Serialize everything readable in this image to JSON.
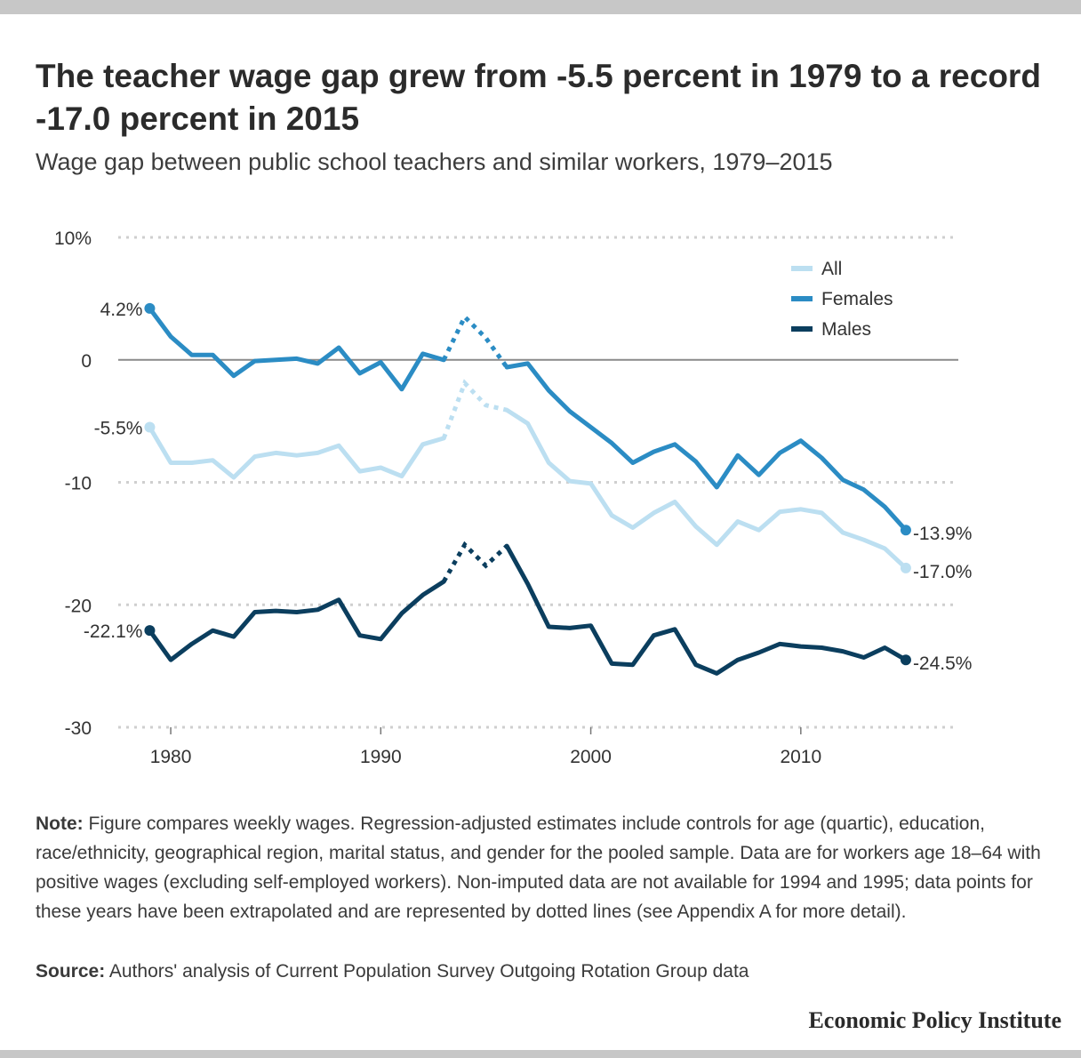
{
  "title": "The teacher wage gap grew from -5.5 percent in 1979 to a record -17.0 percent in 2015",
  "subtitle": "Wage gap between public school teachers and similar workers, 1979–2015",
  "note_label": "Note:",
  "note_text": " Figure compares weekly wages. Regression-adjusted estimates include controls for age (quartic), education, race/ethnicity, geographical region, marital status, and gender for the pooled sample. Data are for workers age 18–64 with positive wages (excluding self-employed workers). Non-imputed data are not available for 1994 and 1995; data points for these years have been extrapolated and are represented by dotted lines (see Appendix A for more detail).",
  "source_label": "Source:",
  "source_text": " Authors' analysis of Current Population Survey Outgoing Rotation Group data",
  "brand": "Economic Policy Institute",
  "chart_data": {
    "type": "line",
    "x": [
      1979,
      1980,
      1981,
      1982,
      1983,
      1984,
      1985,
      1986,
      1987,
      1988,
      1989,
      1990,
      1991,
      1992,
      1993,
      1994,
      1995,
      1996,
      1997,
      1998,
      1999,
      2000,
      2001,
      2002,
      2003,
      2004,
      2005,
      2006,
      2007,
      2008,
      2009,
      2010,
      2011,
      2012,
      2013,
      2014,
      2015
    ],
    "series": [
      {
        "name": "All",
        "color": "#bcdff1",
        "values": [
          -5.5,
          -8.4,
          -8.4,
          -8.2,
          -9.6,
          -7.9,
          -7.6,
          -7.8,
          -7.6,
          -7.0,
          -9.1,
          -8.8,
          -9.5,
          -6.9,
          -6.4,
          -1.9,
          -3.7,
          -4.1,
          -5.2,
          -8.4,
          -9.9,
          -10.1,
          -12.7,
          -13.7,
          -12.5,
          -11.6,
          -13.6,
          -15.1,
          -13.2,
          -13.9,
          -12.4,
          -12.2,
          -12.5,
          -14.1,
          -14.7,
          -15.4,
          -17.0
        ]
      },
      {
        "name": "Females",
        "color": "#2b8cc4",
        "values": [
          4.2,
          1.9,
          0.4,
          0.4,
          -1.3,
          -0.1,
          0.0,
          0.1,
          -0.3,
          1.0,
          -1.1,
          -0.2,
          -2.4,
          0.5,
          0.0,
          3.5,
          1.8,
          -0.6,
          -0.3,
          -2.5,
          -4.2,
          -5.5,
          -6.8,
          -8.4,
          -7.5,
          -6.9,
          -8.3,
          -10.4,
          -7.8,
          -9.4,
          -7.6,
          -6.6,
          -8.0,
          -9.8,
          -10.6,
          -12.0,
          -13.9
        ]
      },
      {
        "name": "Males",
        "color": "#0b3e5e",
        "values": [
          -22.1,
          -24.5,
          -23.2,
          -22.1,
          -22.6,
          -20.6,
          -20.5,
          -20.6,
          -20.4,
          -19.6,
          -22.5,
          -22.8,
          -20.7,
          -19.2,
          -18.1,
          -15.1,
          -16.8,
          -15.2,
          -18.3,
          -21.8,
          -21.9,
          -21.7,
          -24.8,
          -24.9,
          -22.5,
          -22.0,
          -24.9,
          -25.6,
          -24.5,
          -23.9,
          -23.2,
          -23.4,
          -23.5,
          -23.8,
          -24.3,
          -23.5,
          -24.5
        ]
      }
    ],
    "dotted_years": [
      1994,
      1995
    ],
    "ylim": [
      -30,
      10
    ],
    "yticks": [
      10,
      0,
      -10,
      -20,
      -30
    ],
    "ytick_labels": [
      "10%",
      "0",
      "-10",
      "-20",
      "-30"
    ],
    "xticks": [
      1980,
      1990,
      2000,
      2010
    ],
    "xtick_labels": [
      "1980",
      "1990",
      "2000",
      "2010"
    ],
    "start_labels": {
      "All": "-5.5%",
      "Females": "4.2%",
      "Males": "-22.1%"
    },
    "end_labels": {
      "All": "-17.0%",
      "Females": "-13.9%",
      "Males": "-24.5%"
    },
    "legend": "top-right",
    "grid": true
  }
}
